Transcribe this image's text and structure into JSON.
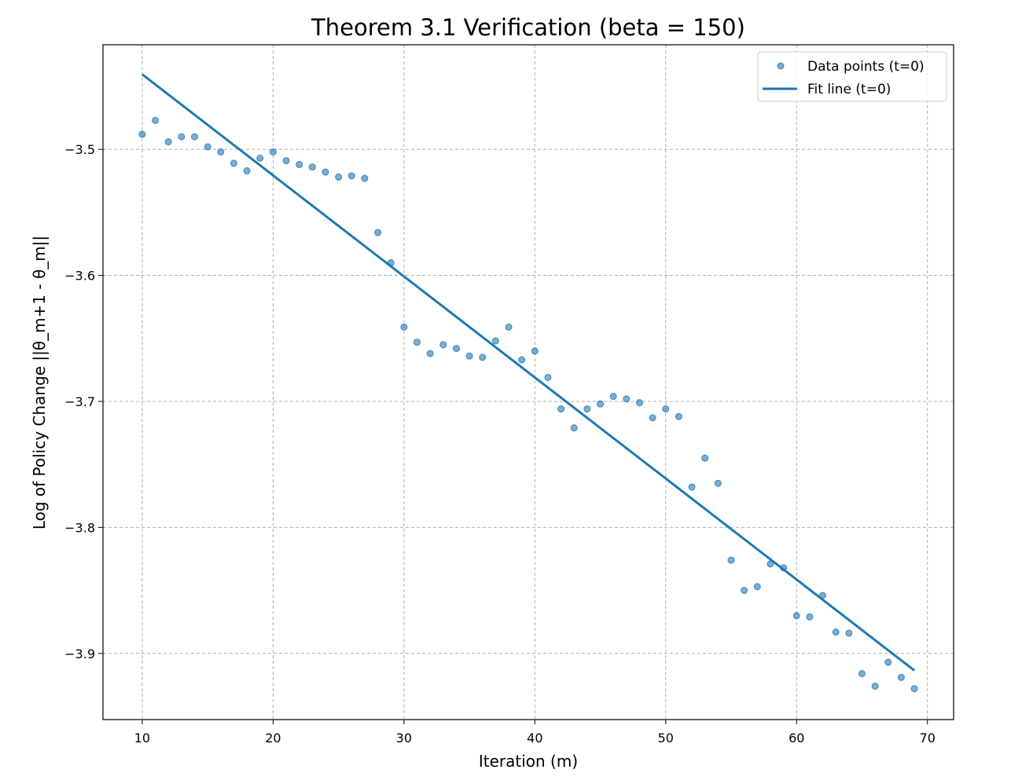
{
  "chart_data": {
    "type": "scatter",
    "title": "Theorem 3.1 Verification (beta = 150)",
    "xlabel": "Iteration (m)",
    "ylabel": "Log of Policy Change ||θ_m+1 - θ_m||",
    "xlim": [
      7,
      72
    ],
    "ylim": [
      -3.9525,
      -3.417
    ],
    "xticks": [
      10,
      20,
      30,
      40,
      50,
      60,
      70
    ],
    "yticks": [
      -3.5,
      -3.6,
      -3.7,
      -3.8,
      -3.9
    ],
    "xtick_labels": [
      "10",
      "20",
      "30",
      "40",
      "50",
      "60",
      "70"
    ],
    "ytick_labels": [
      "−3.5",
      "−3.6",
      "−3.7",
      "−3.8",
      "−3.9"
    ],
    "grid": true,
    "legend_position": "top-right",
    "colors": {
      "series": "#1f77b4",
      "grid": "#b0b0b0"
    },
    "series": [
      {
        "name": "Data points (t=0)",
        "kind": "scatter",
        "x": [
          10,
          11,
          12,
          13,
          14,
          15,
          16,
          17,
          18,
          19,
          20,
          21,
          22,
          23,
          24,
          25,
          26,
          27,
          28,
          29,
          30,
          31,
          32,
          33,
          34,
          35,
          36,
          37,
          38,
          39,
          40,
          41,
          42,
          43,
          44,
          45,
          46,
          47,
          48,
          49,
          50,
          51,
          52,
          53,
          54,
          55,
          56,
          57,
          58,
          59,
          60,
          61,
          62,
          63,
          64,
          65,
          66,
          67,
          68,
          69
        ],
        "y": [
          -3.488,
          -3.477,
          -3.494,
          -3.49,
          -3.49,
          -3.498,
          -3.502,
          -3.511,
          -3.517,
          -3.507,
          -3.502,
          -3.509,
          -3.512,
          -3.514,
          -3.518,
          -3.522,
          -3.521,
          -3.523,
          -3.566,
          -3.59,
          -3.641,
          -3.653,
          -3.662,
          -3.655,
          -3.658,
          -3.664,
          -3.665,
          -3.652,
          -3.641,
          -3.667,
          -3.66,
          -3.681,
          -3.706,
          -3.721,
          -3.706,
          -3.702,
          -3.696,
          -3.698,
          -3.701,
          -3.713,
          -3.706,
          -3.712,
          -3.768,
          -3.745,
          -3.765,
          -3.826,
          -3.85,
          -3.847,
          -3.829,
          -3.832,
          -3.87,
          -3.871,
          -3.854,
          -3.883,
          -3.884,
          -3.916,
          -3.926,
          -3.907,
          -3.919,
          -3.928
        ]
      },
      {
        "name": "Fit line (t=0)",
        "kind": "line",
        "x": [
          10,
          69
        ],
        "y": [
          -3.4405,
          -3.9135
        ]
      }
    ]
  }
}
